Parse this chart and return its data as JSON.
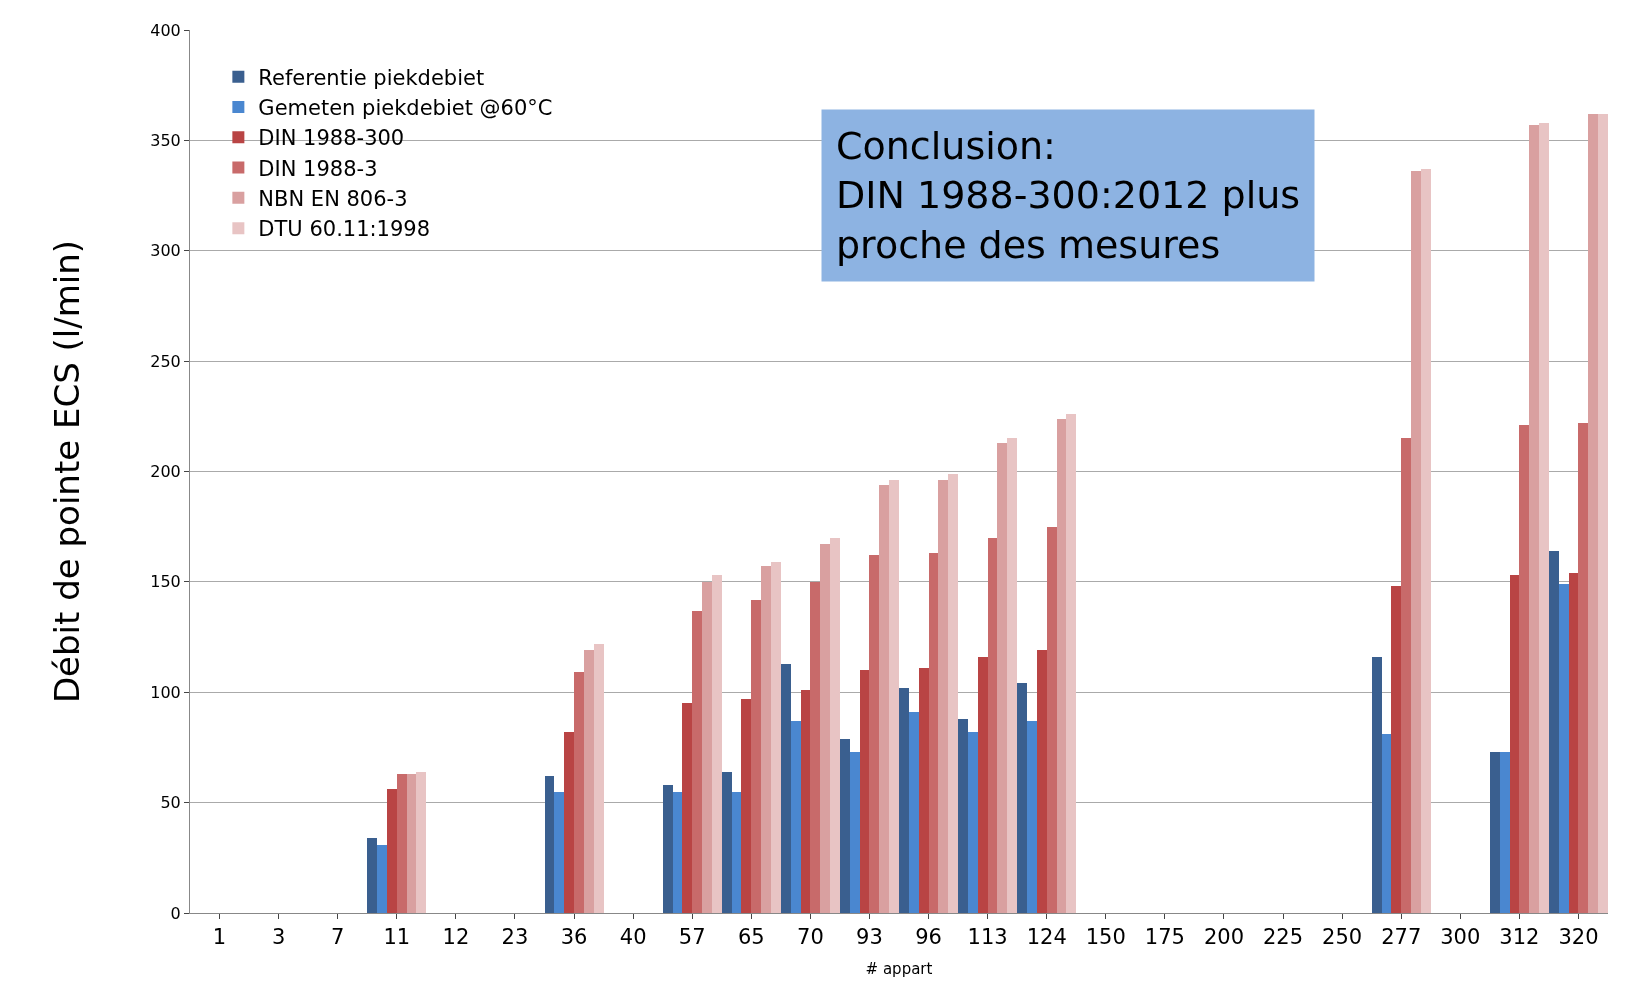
{
  "chart_data": {
    "type": "bar",
    "xlabel": "# appart",
    "ylabel": "Débit de pointe ECS (l/min)",
    "categories": [
      "1",
      "3",
      "7",
      "11",
      "12",
      "23",
      "36",
      "40",
      "57",
      "65",
      "70",
      "93",
      "96",
      "113",
      "124",
      "150",
      "175",
      "200",
      "225",
      "250",
      "277",
      "300",
      "312",
      "320"
    ],
    "series": [
      {
        "name": "Referentie piekdebiet",
        "color": "#3a5f8f",
        "values": [
          null,
          null,
          null,
          34,
          null,
          null,
          62,
          null,
          58,
          64,
          113,
          79,
          102,
          88,
          104,
          null,
          null,
          null,
          null,
          null,
          116,
          null,
          73,
          164
        ]
      },
      {
        "name": "Gemeten piekdebiet @60°C",
        "color": "#4a87d0",
        "values": [
          null,
          null,
          null,
          31,
          null,
          null,
          55,
          null,
          55,
          55,
          87,
          73,
          91,
          82,
          87,
          null,
          null,
          null,
          null,
          null,
          81,
          null,
          73,
          149
        ]
      },
      {
        "name": "DIN 1988-300",
        "color": "#b94444",
        "values": [
          null,
          null,
          null,
          56,
          null,
          null,
          82,
          null,
          95,
          97,
          101,
          110,
          111,
          116,
          119,
          null,
          null,
          null,
          null,
          null,
          148,
          null,
          153,
          154
        ]
      },
      {
        "name": "DIN 1988-3",
        "color": "#c86a6a",
        "values": [
          null,
          null,
          null,
          63,
          null,
          null,
          109,
          null,
          137,
          142,
          150,
          162,
          163,
          170,
          175,
          null,
          null,
          null,
          null,
          null,
          215,
          null,
          221,
          222
        ]
      },
      {
        "name": "NBN EN 806-3",
        "color": "#d9a0a0",
        "values": [
          null,
          null,
          null,
          63,
          null,
          null,
          119,
          null,
          150,
          157,
          167,
          194,
          196,
          213,
          224,
          null,
          null,
          null,
          null,
          null,
          336,
          null,
          357,
          362
        ]
      },
      {
        "name": "DTU 60.11:1998",
        "color": "#e8c4c4",
        "values": [
          null,
          null,
          null,
          64,
          null,
          null,
          122,
          null,
          153,
          159,
          170,
          196,
          199,
          215,
          226,
          null,
          null,
          null,
          null,
          null,
          337,
          null,
          358,
          362
        ]
      }
    ],
    "ylim": [
      0,
      400
    ],
    "yticks": [
      0,
      50,
      100,
      150,
      200,
      250,
      300,
      350,
      400
    ],
    "grid": "y",
    "legend": "top left",
    "annotations": [
      "Conclusion:\nDIN 1988-300:2012 plus\nproche des mesures"
    ]
  }
}
